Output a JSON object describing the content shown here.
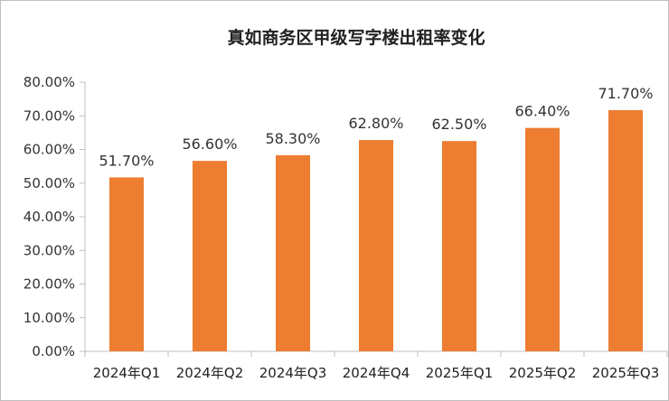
{
  "chart_data": {
    "type": "bar",
    "title": "真如商务区甲级写字楼出租率变化",
    "categories": [
      "2024年Q1",
      "2024年Q2",
      "2024年Q3",
      "2024年Q4",
      "2025年Q1",
      "2025年Q2",
      "2025年Q3"
    ],
    "values": [
      51.7,
      56.6,
      58.3,
      62.8,
      62.5,
      66.4,
      71.7
    ],
    "data_labels": [
      "51.70%",
      "56.60%",
      "58.30%",
      "62.80%",
      "62.50%",
      "66.40%",
      "71.70%"
    ],
    "ylim": [
      0,
      80
    ],
    "yticks": [
      "0.00%",
      "10.00%",
      "20.00%",
      "30.00%",
      "40.00%",
      "50.00%",
      "60.00%",
      "70.00%",
      "80.00%"
    ],
    "xlabel": "",
    "ylabel": "",
    "grid": false,
    "legend": "none",
    "bar_color": "#ED7D31"
  }
}
